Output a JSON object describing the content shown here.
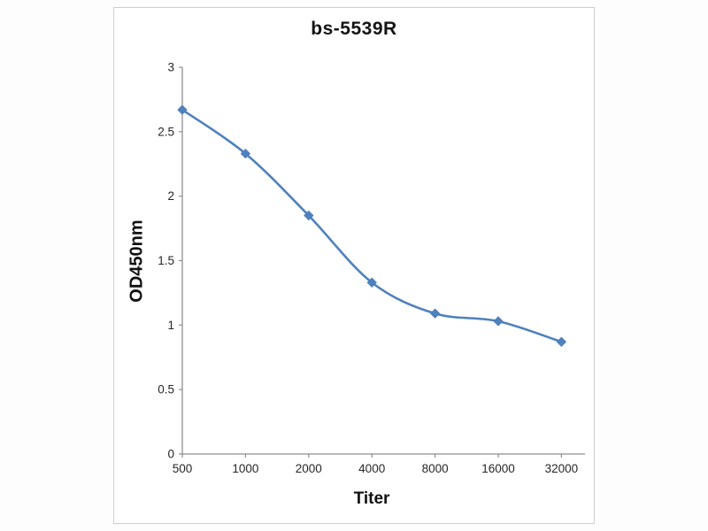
{
  "window": {
    "background": "#fdfdfd",
    "panel_background": "#ffffff",
    "panel_border": "#cfcfcf"
  },
  "chart_data": {
    "type": "line",
    "title": "bs-5539R",
    "xlabel": "Titer",
    "ylabel": "OD450nm",
    "categories": [
      "500",
      "1000",
      "2000",
      "4000",
      "8000",
      "16000",
      "32000"
    ],
    "series": [
      {
        "name": "OD450nm",
        "color": "#4f81bd",
        "marker": "diamond",
        "values": [
          2.67,
          2.33,
          1.85,
          1.33,
          1.09,
          1.03,
          0.87
        ]
      }
    ],
    "ylim": [
      0,
      3
    ],
    "yticks": [
      3,
      2.5,
      2,
      1.5,
      1,
      0.5,
      0
    ],
    "ytick_labels": [
      "3",
      "2.5",
      "2",
      "1.5",
      "1",
      "0.5",
      "0"
    ],
    "grid": false,
    "legend": false,
    "smooth": true,
    "axis_color": "#8e8e8e",
    "tick_text_color": "#262626"
  }
}
